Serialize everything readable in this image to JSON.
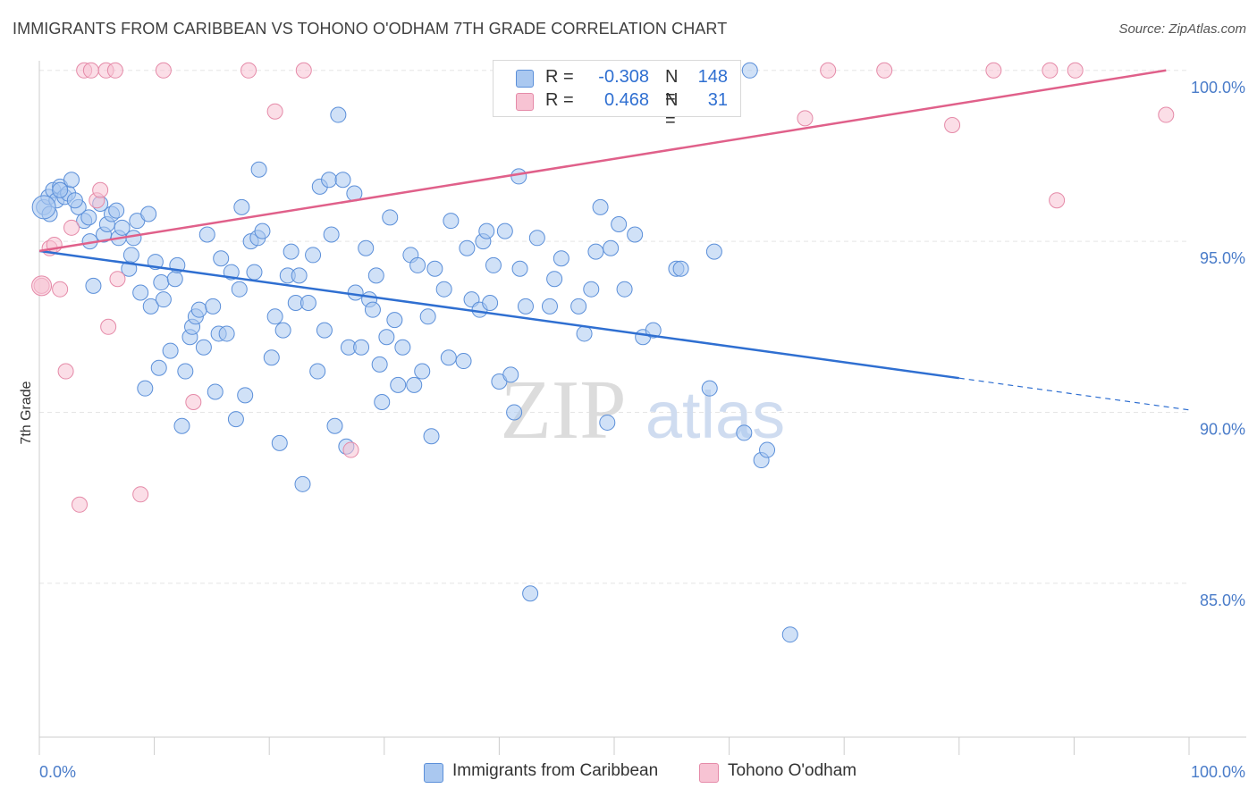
{
  "title": "IMMIGRANTS FROM CARIBBEAN VS TOHONO O'ODHAM 7TH GRADE CORRELATION CHART",
  "source": "Source: ZipAtlas.com",
  "watermark": {
    "zip": "ZIP",
    "atlas": "atlas"
  },
  "legend": {
    "rows": [
      {
        "r_label": "R =",
        "r_value": "-0.308",
        "n_label": "N =",
        "n_value": "148"
      },
      {
        "r_label": "R =",
        "r_value": "0.468",
        "n_label": "N =",
        "n_value": "31"
      }
    ]
  },
  "bottom_legend": [
    "Immigrants from Caribbean",
    "Tohono O'odham"
  ],
  "colors": {
    "blue_fill": "#aac8f0",
    "blue_stroke": "#5b8fd9",
    "blue_line": "#2f6fd1",
    "pink_fill": "#f7c3d3",
    "pink_stroke": "#e58aa8",
    "pink_line": "#e0608a",
    "tick_text": "#4a7cc9",
    "grid": "#e5e5e5"
  },
  "chart_data": {
    "type": "scatter",
    "title": "IMMIGRANTS FROM CARIBBEAN VS TOHONO O'ODHAM 7TH GRADE CORRELATION CHART",
    "xlabel": "",
    "ylabel": "7th Grade",
    "xlim": [
      0,
      100
    ],
    "ylim": [
      80.5,
      100.7
    ],
    "x_tick_labels": [
      "0.0%",
      "100.0%"
    ],
    "y_ticks": [
      85,
      90,
      95,
      100
    ],
    "y_tick_labels": [
      "85.0%",
      "90.0%",
      "95.0%",
      "100.0%"
    ],
    "grid": true,
    "series": [
      {
        "name": "Immigrants from Caribbean",
        "color": "#aac8f0",
        "r": -0.308,
        "n": 148,
        "trend": {
          "x0": 0,
          "y0": 94.72,
          "x1": 80,
          "y1": 91.0,
          "dashed_to_x": 100,
          "dashed_to_y": 90.07
        },
        "points": [
          [
            0.4,
            96.0
          ],
          [
            0.8,
            96.3
          ],
          [
            1.2,
            96.5
          ],
          [
            1.5,
            96.2
          ],
          [
            1.8,
            96.6
          ],
          [
            2.2,
            96.3
          ],
          [
            2.5,
            96.4
          ],
          [
            3.4,
            96.0
          ],
          [
            3.9,
            95.6
          ],
          [
            4.3,
            95.7
          ],
          [
            4.4,
            95.0
          ],
          [
            4.7,
            93.7
          ],
          [
            5.3,
            96.1
          ],
          [
            5.6,
            95.2
          ],
          [
            5.9,
            95.5
          ],
          [
            6.3,
            95.8
          ],
          [
            6.7,
            95.9
          ],
          [
            6.9,
            95.1
          ],
          [
            7.2,
            95.4
          ],
          [
            7.8,
            94.2
          ],
          [
            8.0,
            94.6
          ],
          [
            8.2,
            95.1
          ],
          [
            8.5,
            95.6
          ],
          [
            8.8,
            93.5
          ],
          [
            9.2,
            90.7
          ],
          [
            9.5,
            95.8
          ],
          [
            9.7,
            93.1
          ],
          [
            10.1,
            94.4
          ],
          [
            10.4,
            91.3
          ],
          [
            10.6,
            93.8
          ],
          [
            10.8,
            93.3
          ],
          [
            11.4,
            91.8
          ],
          [
            11.8,
            93.9
          ],
          [
            12.0,
            94.3
          ],
          [
            12.4,
            89.6
          ],
          [
            12.7,
            91.2
          ],
          [
            13.1,
            92.2
          ],
          [
            13.3,
            92.5
          ],
          [
            13.6,
            92.8
          ],
          [
            13.9,
            93.0
          ],
          [
            14.3,
            91.9
          ],
          [
            14.6,
            95.2
          ],
          [
            15.1,
            93.1
          ],
          [
            15.3,
            90.6
          ],
          [
            15.6,
            92.3
          ],
          [
            15.8,
            94.5
          ],
          [
            16.3,
            92.3
          ],
          [
            16.7,
            94.1
          ],
          [
            17.1,
            89.8
          ],
          [
            17.4,
            93.6
          ],
          [
            17.6,
            96.0
          ],
          [
            17.9,
            90.5
          ],
          [
            18.4,
            95.0
          ],
          [
            18.7,
            94.1
          ],
          [
            19.0,
            95.1
          ],
          [
            19.4,
            95.3
          ],
          [
            19.1,
            97.1
          ],
          [
            20.2,
            91.6
          ],
          [
            20.5,
            92.8
          ],
          [
            20.9,
            89.1
          ],
          [
            21.2,
            92.4
          ],
          [
            21.6,
            94.0
          ],
          [
            21.9,
            94.7
          ],
          [
            22.3,
            93.2
          ],
          [
            22.6,
            94.0
          ],
          [
            22.9,
            87.9
          ],
          [
            23.4,
            93.2
          ],
          [
            23.8,
            94.6
          ],
          [
            24.2,
            91.2
          ],
          [
            24.4,
            96.6
          ],
          [
            24.8,
            92.4
          ],
          [
            25.2,
            96.8
          ],
          [
            25.4,
            95.2
          ],
          [
            25.7,
            89.6
          ],
          [
            26.0,
            98.7
          ],
          [
            26.4,
            96.8
          ],
          [
            26.7,
            89.0
          ],
          [
            26.9,
            91.9
          ],
          [
            27.4,
            96.4
          ],
          [
            27.5,
            93.5
          ],
          [
            28.0,
            91.9
          ],
          [
            28.4,
            94.8
          ],
          [
            28.7,
            93.3
          ],
          [
            29.0,
            93.0
          ],
          [
            29.3,
            94.0
          ],
          [
            29.6,
            91.4
          ],
          [
            29.8,
            90.3
          ],
          [
            30.2,
            92.2
          ],
          [
            30.5,
            95.7
          ],
          [
            30.9,
            92.7
          ],
          [
            31.2,
            90.8
          ],
          [
            31.6,
            91.9
          ],
          [
            32.3,
            94.6
          ],
          [
            32.6,
            90.8
          ],
          [
            32.9,
            94.3
          ],
          [
            33.3,
            91.2
          ],
          [
            33.8,
            92.8
          ],
          [
            34.1,
            89.3
          ],
          [
            34.4,
            94.2
          ],
          [
            35.2,
            93.6
          ],
          [
            35.6,
            91.6
          ],
          [
            35.8,
            95.6
          ],
          [
            36.9,
            91.5
          ],
          [
            37.2,
            94.8
          ],
          [
            37.6,
            93.3
          ],
          [
            38.3,
            93.0
          ],
          [
            38.6,
            95.0
          ],
          [
            38.9,
            95.3
          ],
          [
            39.2,
            93.2
          ],
          [
            39.5,
            94.3
          ],
          [
            40.0,
            90.9
          ],
          [
            40.5,
            95.3
          ],
          [
            41.0,
            91.1
          ],
          [
            41.3,
            90.0
          ],
          [
            41.8,
            94.2
          ],
          [
            42.3,
            93.1
          ],
          [
            42.7,
            84.7
          ],
          [
            41.7,
            96.9
          ],
          [
            43.3,
            95.1
          ],
          [
            44.4,
            93.1
          ],
          [
            44.8,
            93.9
          ],
          [
            45.4,
            94.5
          ],
          [
            46.9,
            93.1
          ],
          [
            47.4,
            92.3
          ],
          [
            46.3,
            100.0
          ],
          [
            48.0,
            93.6
          ],
          [
            48.4,
            94.7
          ],
          [
            48.8,
            96.0
          ],
          [
            49.4,
            89.7
          ],
          [
            49.7,
            94.8
          ],
          [
            50.4,
            95.5
          ],
          [
            50.9,
            93.6
          ],
          [
            51.8,
            95.2
          ],
          [
            52.5,
            92.2
          ],
          [
            53.4,
            92.4
          ],
          [
            55.4,
            94.2
          ],
          [
            55.8,
            94.2
          ],
          [
            58.3,
            90.7
          ],
          [
            58.7,
            94.7
          ],
          [
            61.3,
            89.4
          ],
          [
            62.8,
            88.6
          ],
          [
            63.3,
            88.9
          ],
          [
            65.3,
            83.5
          ],
          [
            61.8,
            100.0
          ],
          [
            1.8,
            96.5
          ],
          [
            2.8,
            96.8
          ],
          [
            3.1,
            96.2
          ],
          [
            0.9,
            95.8
          ]
        ]
      },
      {
        "name": "Tohono O'odham",
        "color": "#f7c3d3",
        "r": 0.468,
        "n": 31,
        "trend": {
          "x0": 0,
          "y0": 94.72,
          "x1": 98,
          "y1": 100.0
        },
        "points": [
          [
            0.2,
            93.7
          ],
          [
            0.9,
            94.8
          ],
          [
            1.3,
            94.9
          ],
          [
            1.8,
            93.6
          ],
          [
            2.3,
            91.2
          ],
          [
            2.8,
            95.4
          ],
          [
            3.5,
            87.3
          ],
          [
            3.9,
            100.0
          ],
          [
            4.5,
            100.0
          ],
          [
            5.0,
            96.2
          ],
          [
            5.3,
            96.5
          ],
          [
            5.8,
            100.0
          ],
          [
            6.0,
            92.5
          ],
          [
            6.6,
            100.0
          ],
          [
            6.8,
            93.9
          ],
          [
            8.8,
            87.6
          ],
          [
            10.8,
            100.0
          ],
          [
            13.4,
            90.3
          ],
          [
            18.2,
            100.0
          ],
          [
            20.5,
            98.8
          ],
          [
            23.0,
            100.0
          ],
          [
            27.1,
            88.9
          ],
          [
            47.8,
            100.0
          ],
          [
            66.6,
            98.6
          ],
          [
            68.6,
            100.0
          ],
          [
            73.5,
            100.0
          ],
          [
            79.4,
            98.4
          ],
          [
            83.0,
            100.0
          ],
          [
            87.9,
            100.0
          ],
          [
            88.5,
            96.2
          ],
          [
            90.1,
            100.0
          ],
          [
            98.0,
            98.7
          ]
        ]
      }
    ]
  }
}
